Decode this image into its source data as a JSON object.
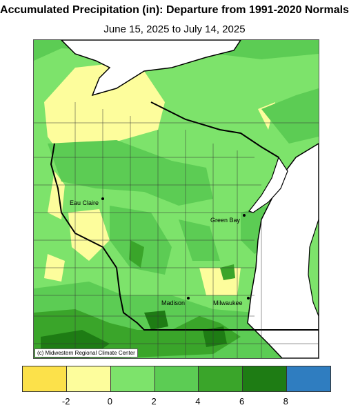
{
  "header": {
    "title": "Accumulated Precipitation (in): Departure from 1991-2020 Normals",
    "subtitle": "June 15, 2025 to July 14, 2025"
  },
  "map": {
    "credit": "(c) Midwestern Regional Climate Center",
    "cities": [
      {
        "name": "Eau Claire"
      },
      {
        "name": "Green Bay"
      },
      {
        "name": "Madison"
      },
      {
        "name": "Milwaukee"
      }
    ],
    "colors": {
      "water": "#ffffff",
      "neg2_0": "#fdfd9c",
      "zero_2": "#7de36b",
      "two_4": "#5ccc54",
      "four_6": "#3aa52a",
      "six_8": "#1e7c14"
    }
  },
  "legend": {
    "bins": [
      {
        "color": "#fce14a"
      },
      {
        "color": "#fdfd9c"
      },
      {
        "color": "#7de36b"
      },
      {
        "color": "#5ccc54"
      },
      {
        "color": "#3aa52a"
      },
      {
        "color": "#1e7c14"
      },
      {
        "color": "#2f7dc0"
      }
    ],
    "ticks": [
      "-2",
      "0",
      "2",
      "4",
      "6",
      "8"
    ]
  }
}
